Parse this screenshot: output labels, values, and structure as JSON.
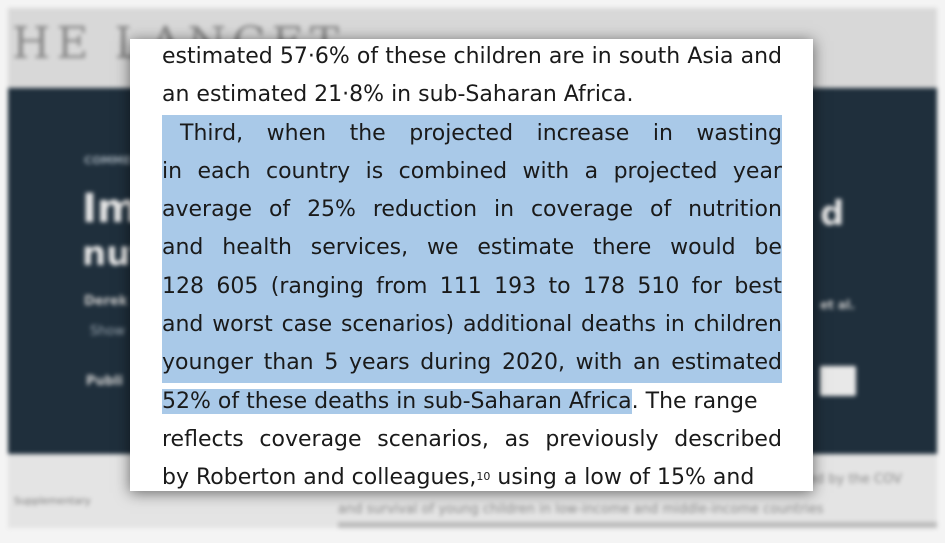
{
  "background": {
    "logo_text": "HE LANCET",
    "kicker": "COMMENT",
    "title_fragment_1": "Imp",
    "title_fragment_2": "nut",
    "title_fragment_right": "d",
    "author_fragment": "Derek",
    "author_etal": "et al.",
    "show_fragment": "Show",
    "published_fragment": "Publi",
    "supplementary_fragment": "Supplementary",
    "body_fragment_1": "ed by the COV",
    "body_fragment_2": "and survival of young children in low-income and middle-income countries"
  },
  "article": {
    "lines": [
      "estimated 57·6% of these children are in south Asia and",
      "an estimated 21·8% in sub-Saharan Africa.",
      "Third, when the projected increase in wasting",
      "in each country is combined with a projected year",
      "average of 25% reduction in coverage of nutrition",
      "and health services, we estimate there would be",
      "128 605 (ranging from 111 193 to 178 510 for best",
      "and worst case scenarios) additional deaths in children",
      "younger than 5 years during 2020, with an estimated",
      "52% of these deaths in sub-Saharan Africa",
      ". The range",
      "reflects coverage scenarios, as previously described",
      "by Roberton and colleagues,",
      "10",
      " using a low of 15% and"
    ]
  },
  "colors": {
    "highlight": "#a9c9e8",
    "banner": "#1f2f3c"
  }
}
